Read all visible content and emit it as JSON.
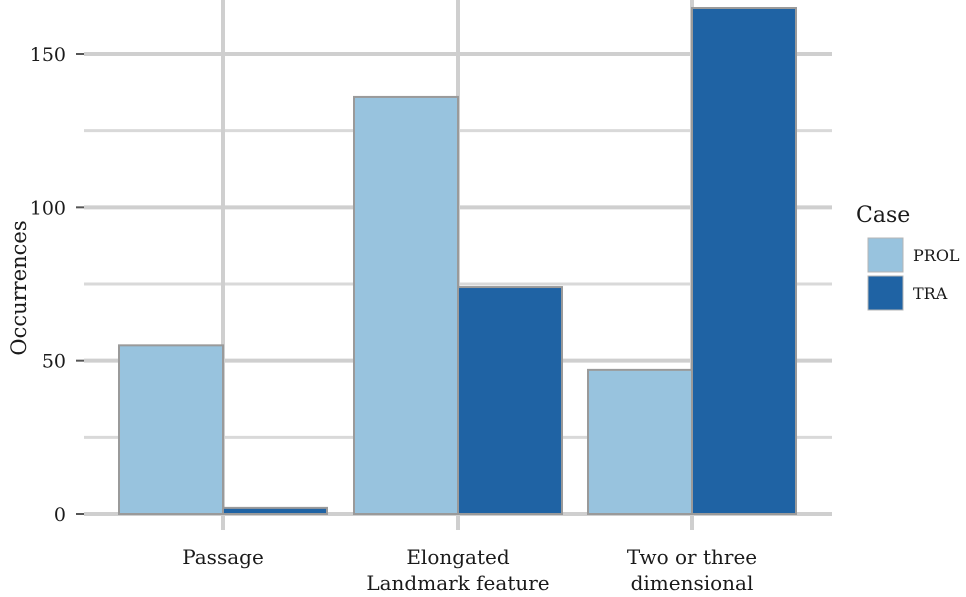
{
  "chart_data": {
    "type": "bar",
    "categories": [
      "Passage",
      "Elongated Landmark feature",
      "Two or three dimensional"
    ],
    "category_lines": [
      [
        "Passage"
      ],
      [
        "Elongated",
        "Landmark feature"
      ],
      [
        "Two or three",
        "dimensional"
      ]
    ],
    "series": [
      {
        "name": "PROL",
        "values": [
          55,
          136,
          47
        ],
        "color": "#98c3de"
      },
      {
        "name": "TRA",
        "values": [
          2,
          74,
          166
        ],
        "color": "#1f63a4"
      }
    ],
    "ylabel": "Occurrences",
    "ylim": [
      0,
      166
    ],
    "yticks": [
      0,
      50,
      100,
      150
    ],
    "grid": true,
    "legend": {
      "title": "Case",
      "placement": "right"
    }
  }
}
